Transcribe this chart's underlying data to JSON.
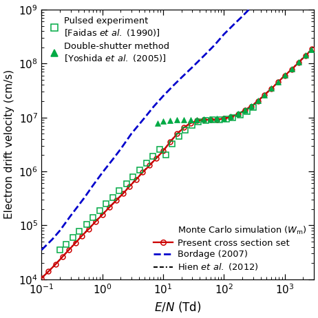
{
  "title": "",
  "xlabel": "$E/N$ (Td)",
  "ylabel": "Electron drift velocity (cm/s)",
  "xlim": [
    0.1,
    3000
  ],
  "ylim": [
    10000.0,
    1000000000.0
  ],
  "background": "#ffffff",
  "present_x": [
    0.1,
    0.13,
    0.17,
    0.22,
    0.28,
    0.36,
    0.46,
    0.6,
    0.77,
    1.0,
    1.3,
    1.7,
    2.2,
    2.8,
    3.6,
    4.6,
    6.0,
    7.7,
    10.0,
    13,
    17,
    22,
    28,
    36,
    46,
    60,
    77,
    100,
    130,
    170,
    220,
    280,
    360,
    460,
    600,
    770,
    1000,
    1300,
    1700,
    2200,
    2800
  ],
  "present_y": [
    10500.0,
    14000.0,
    19000.0,
    26000.0,
    35000.0,
    47000.0,
    64000.0,
    86000.0,
    117000.0,
    158000.0,
    215000.0,
    290000.0,
    390000.0,
    530000.0,
    710000.0,
    960000.0,
    1300000.0,
    1750000.0,
    2400000.0,
    3500000.0,
    5000000.0,
    6500000.0,
    7800000.0,
    8700000.0,
    9000000.0,
    9100000.0,
    9200000.0,
    9500000.0,
    10200000.0,
    11500000.0,
    13500000.0,
    16000000.0,
    20000000.0,
    26000000.0,
    34000000.0,
    45000000.0,
    60000000.0,
    78000000.0,
    105000000.0,
    140000000.0,
    185000000.0
  ],
  "bordage_x": [
    0.1,
    0.15,
    0.2,
    0.3,
    0.5,
    0.7,
    1.0,
    1.5,
    2.0,
    3.0,
    5.0,
    7.0,
    10.0,
    15.0,
    20.0,
    30.0,
    50.0,
    70.0,
    100.0,
    150.0,
    200.0,
    300.0,
    500.0,
    700.0,
    1000.0,
    2000.0,
    3000.0
  ],
  "bordage_y": [
    35000.0,
    55000.0,
    80000.0,
    150000.0,
    320000.0,
    550000.0,
    950000.0,
    1700000.0,
    2600000.0,
    5000000.0,
    10000000.0,
    16000000.0,
    25000000.0,
    40000000.0,
    55000000.0,
    85000000.0,
    150000000.0,
    220000000.0,
    350000000.0,
    550000000.0,
    750000000.0,
    1200000000.0,
    2000000000.0,
    3000000000.0,
    4500000000.0,
    10000000000.0,
    20000000000.0
  ],
  "hien_x": [
    0.1,
    0.13,
    0.17,
    0.22,
    0.28,
    0.36,
    0.46,
    0.6,
    0.77,
    1.0,
    1.3,
    1.7,
    2.2,
    2.8,
    3.6,
    4.6,
    6.0,
    7.7,
    10.0,
    13,
    17,
    22,
    28,
    36,
    46,
    60,
    77,
    100,
    130,
    170,
    220,
    280,
    360,
    460,
    600,
    770,
    1000,
    1300,
    1700,
    2200,
    2800
  ],
  "hien_y": [
    10500.0,
    14000.0,
    19000.0,
    26000.0,
    35000.0,
    47500.0,
    64000.0,
    87000.0,
    118000.0,
    160000.0,
    217000.0,
    295000.0,
    395000.0,
    535000.0,
    720000.0,
    970000.0,
    1310000.0,
    1760000.0,
    2420000.0,
    3520000.0,
    5050000.0,
    6550000.0,
    7850000.0,
    8750000.0,
    9050000.0,
    9150000.0,
    9250000.0,
    9550000.0,
    10300000.0,
    11600000.0,
    13700000.0,
    16200000.0,
    20200000.0,
    26200000.0,
    34200000.0,
    45200000.0,
    60200000.0,
    78200000.0,
    106000000.0,
    142000000.0,
    187000000.0
  ],
  "faidas_x": [
    0.2,
    0.25,
    0.33,
    0.42,
    0.55,
    0.7,
    0.9,
    1.15,
    1.5,
    1.9,
    2.5,
    3.2,
    4.1,
    5.3,
    6.8,
    8.7,
    11,
    14,
    18,
    23,
    30,
    38,
    50,
    65,
    85,
    110,
    140,
    185,
    240,
    300
  ],
  "faidas_y": [
    35000.0,
    45000.0,
    60000.0,
    78000.0,
    105000.0,
    138000.0,
    185000.0,
    250000.0,
    330000.0,
    440000.0,
    590000.0,
    790000.0,
    1060000.0,
    1420000.0,
    1900000.0,
    2550000.0,
    2000000.0,
    3250000.0,
    4500000.0,
    5800000.0,
    7200000.0,
    8200000.0,
    8800000.0,
    9000000.0,
    9100000.0,
    9400000.0,
    9800000.0,
    11000000.0,
    13000000.0,
    15500000.0
  ],
  "yoshida_x": [
    8.0,
    10.0,
    13.0,
    17.0,
    22.0,
    28.0,
    36.0,
    46.0,
    60.0,
    77.0,
    100.0,
    130.0,
    170.0,
    220.0,
    280.0,
    360.0,
    460.0,
    600.0,
    770.0,
    1000.0,
    1300.0,
    1700.0,
    2200.0,
    2700.0
  ],
  "yoshida_y": [
    7800000.0,
    8500000.0,
    8900000.0,
    9000000.0,
    9100000.0,
    9100000.0,
    9200000.0,
    9300000.0,
    9400000.0,
    9500000.0,
    9700000.0,
    10500000.0,
    11700000.0,
    13800000.0,
    16500000.0,
    20500000.0,
    26500000.0,
    35000000.0,
    46000000.0,
    61000000.0,
    80000000.0,
    107000000.0,
    143000000.0,
    182000000.0
  ],
  "color_present": "#cc0000",
  "color_bordage": "#0000cc",
  "color_hien": "#000000",
  "color_faidas": "#00aa44",
  "color_yoshida": "#00aa44",
  "figsize": [
    4.2,
    4.2
  ],
  "dpi": 110
}
